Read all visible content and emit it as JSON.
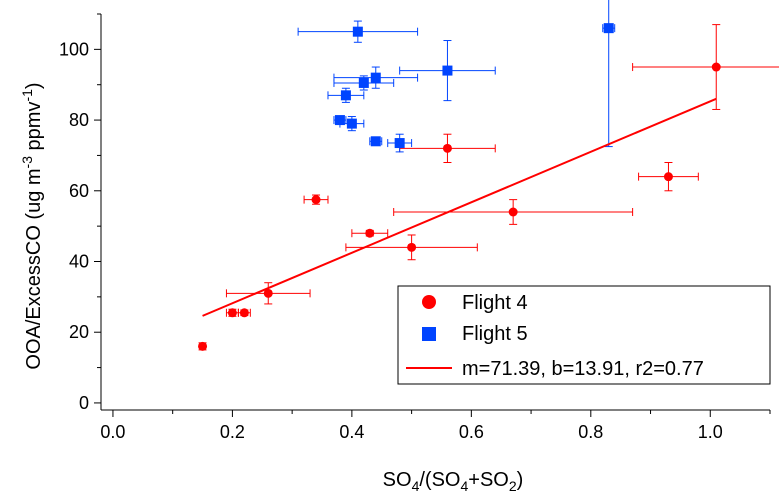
{
  "chart_data": {
    "type": "scatter",
    "title": "",
    "xlabel": {
      "base1": "SO",
      "sub1": "4",
      "mid": "/(SO",
      "sub2": "4",
      "mid2": "+SO",
      "sub3": "2",
      "end": ")"
    },
    "ylabel": {
      "main": "OOA/ExcessCO (ug m",
      "sup1": "-3",
      "mid": " ppmv",
      "sup2": "-1",
      "end": ")"
    },
    "xlim": [
      -0.02,
      1.1
    ],
    "ylim": [
      -2,
      110
    ],
    "xticks": [
      0.0,
      0.2,
      0.4,
      0.6,
      0.8,
      1.0
    ],
    "xtick_labels": [
      "0.0",
      "0.2",
      "0.4",
      "0.6",
      "0.8",
      "1.0"
    ],
    "yticks": [
      0,
      20,
      40,
      60,
      80,
      100
    ],
    "ytick_labels": [
      "0",
      "20",
      "40",
      "60",
      "80",
      "100"
    ],
    "legend_position": "bottom-right",
    "series": [
      {
        "name": "Flight 4",
        "marker": "circle",
        "color": "#ff0000",
        "points": [
          {
            "x": 0.15,
            "y": 16,
            "xerr": 0,
            "yerr": 1
          },
          {
            "x": 0.2,
            "y": 25.5,
            "xerr": 0.01,
            "yerr": 1
          },
          {
            "x": 0.22,
            "y": 25.5,
            "xerr": 0.01,
            "yerr": 0.8
          },
          {
            "x": 0.26,
            "y": 31,
            "xerr": 0.07,
            "yerr": 3
          },
          {
            "x": 0.34,
            "y": 57.5,
            "xerr": 0.02,
            "yerr": 1.3
          },
          {
            "x": 0.43,
            "y": 48,
            "xerr": 0.03,
            "yerr": 0.8
          },
          {
            "x": 0.5,
            "y": 44,
            "xerr": 0.11,
            "yerr": 3.5
          },
          {
            "x": 0.56,
            "y": 72,
            "xerr": 0.08,
            "yerr": 4
          },
          {
            "x": 0.67,
            "y": 54,
            "xerr": 0.2,
            "yerr": 3.5
          },
          {
            "x": 0.93,
            "y": 64,
            "xerr": 0.05,
            "yerr": 4
          },
          {
            "x": 1.01,
            "y": 95,
            "xerr": 0.14,
            "yerr": 12
          }
        ]
      },
      {
        "name": "Flight 5",
        "marker": "square",
        "color": "#0044ff",
        "points": [
          {
            "x": 0.38,
            "y": 80,
            "xerr": 0.01,
            "yerr": 1
          },
          {
            "x": 0.39,
            "y": 87,
            "xerr": 0.03,
            "yerr": 2
          },
          {
            "x": 0.4,
            "y": 79,
            "xerr": 0.02,
            "yerr": 2
          },
          {
            "x": 0.41,
            "y": 105,
            "xerr": 0.1,
            "yerr": 3
          },
          {
            "x": 0.42,
            "y": 90.5,
            "xerr": 0.05,
            "yerr": 2
          },
          {
            "x": 0.44,
            "y": 92,
            "xerr": 0.07,
            "yerr": 3
          },
          {
            "x": 0.44,
            "y": 74,
            "xerr": 0.01,
            "yerr": 0.5
          },
          {
            "x": 0.48,
            "y": 73.5,
            "xerr": 0.02,
            "yerr": 2.5
          },
          {
            "x": 0.56,
            "y": 94,
            "xerr": 0.08,
            "yerr": 8.5
          },
          {
            "x": 0.83,
            "y": 106,
            "xerr": 0.01,
            "yerr": 33.5
          }
        ]
      }
    ],
    "fit": {
      "name": "m=71.39, b=13.91, r2=0.77",
      "slope": 71.39,
      "intercept": 13.91,
      "x_range": [
        0.15,
        1.01
      ],
      "color": "#ff0000"
    }
  }
}
